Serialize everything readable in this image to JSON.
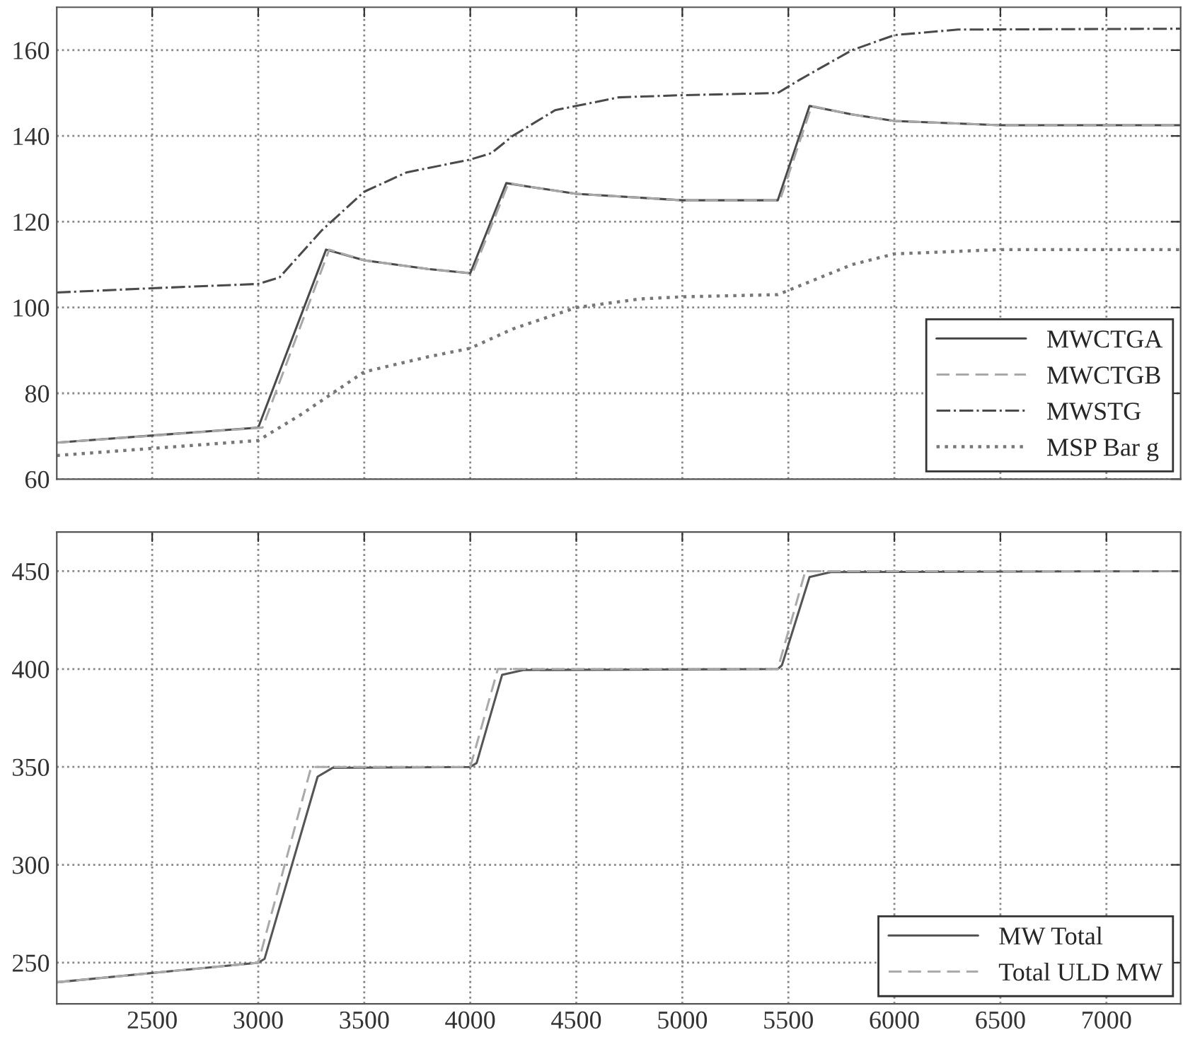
{
  "chart_data": [
    {
      "type": "line",
      "xlim": [
        2050,
        7350
      ],
      "xticks": [
        {
          "value": 2500,
          "label": null
        },
        {
          "value": 3000,
          "label": null
        },
        {
          "value": 3500,
          "label": null
        },
        {
          "value": 4000,
          "label": null
        },
        {
          "value": 4500,
          "label": null
        },
        {
          "value": 5000,
          "label": null
        },
        {
          "value": 5500,
          "label": null
        },
        {
          "value": 6000,
          "label": null
        },
        {
          "value": 6500,
          "label": null
        },
        {
          "value": 7000,
          "label": null
        }
      ],
      "ylim": [
        60,
        170
      ],
      "yticks": [
        60,
        80,
        100,
        120,
        140,
        160
      ],
      "tick_labels": "y",
      "grid": true,
      "legend": "bottom right",
      "series": [
        {
          "name": "MWCTGA",
          "color": "#4a4a4a",
          "line_style": "solid",
          "x": [
            2050,
            3000,
            3320,
            3500,
            3800,
            4000,
            4170,
            4300,
            4500,
            5000,
            5450,
            5600,
            5800,
            6000,
            6500,
            7350
          ],
          "values": [
            68.5,
            72,
            113.5,
            111,
            109,
            108,
            129,
            128,
            126.5,
            125,
            125,
            147,
            145,
            143.5,
            142.5,
            142.5
          ]
        },
        {
          "name": "MWCTGB",
          "color": "#a8a8a8",
          "line_style": "dashed",
          "x": [
            2050,
            3020,
            3335,
            3500,
            3800,
            4010,
            4180,
            4300,
            4500,
            5000,
            5460,
            5610,
            5800,
            6000,
            6500,
            7350
          ],
          "values": [
            68.5,
            72,
            113.5,
            111,
            109,
            108,
            129,
            128,
            126.5,
            125,
            125,
            147,
            145,
            143.5,
            142.5,
            142.5
          ]
        },
        {
          "name": "MWSTG",
          "color": "#4a4a4a",
          "line_style": "dashdot",
          "x": [
            2050,
            2500,
            3000,
            3100,
            3300,
            3500,
            3700,
            4000,
            4100,
            4200,
            4400,
            4700,
            5000,
            5450,
            5550,
            5800,
            6000,
            6300,
            7350
          ],
          "values": [
            103.5,
            104.5,
            105.5,
            107,
            118,
            127,
            131.5,
            134.5,
            136,
            140,
            146,
            149,
            149.5,
            150,
            153,
            160,
            163.5,
            164.8,
            165
          ]
        },
        {
          "name": "MSP Bar g",
          "color": "#777777",
          "line_style": "dotted",
          "x": [
            2050,
            3000,
            3200,
            3500,
            3800,
            4000,
            4200,
            4500,
            4800,
            5000,
            5450,
            5600,
            5800,
            6000,
            6500,
            7350
          ],
          "values": [
            65.5,
            69,
            75,
            85,
            88.5,
            90.5,
            95,
            100,
            102,
            102.5,
            103,
            106,
            110,
            112.5,
            113.5,
            113.5
          ]
        }
      ]
    },
    {
      "type": "line",
      "xlim": [
        2050,
        7350
      ],
      "xticks": [
        2500,
        3000,
        3500,
        4000,
        4500,
        5000,
        5500,
        6000,
        6500,
        7000
      ],
      "ylim": [
        229,
        470
      ],
      "yticks": [
        250,
        300,
        350,
        400,
        450
      ],
      "grid": true,
      "legend": "bottom right",
      "series": [
        {
          "name": "MW Total",
          "color": "#555555",
          "line_style": "solid",
          "x": [
            2050,
            3000,
            3030,
            3280,
            3350,
            4000,
            4030,
            4150,
            4250,
            5450,
            5470,
            5600,
            5700,
            7350
          ],
          "values": [
            240,
            250,
            252,
            345,
            349.5,
            350,
            352,
            397,
            399.5,
            400,
            402,
            447,
            449.5,
            450
          ]
        },
        {
          "name": "Total ULD MW",
          "color": "#aaaaaa",
          "line_style": "dashed",
          "x": [
            2050,
            3000,
            3250,
            4000,
            4130,
            5450,
            5580,
            7350
          ],
          "values": [
            240,
            250,
            350,
            350,
            400,
            400,
            450,
            450
          ]
        }
      ]
    }
  ]
}
